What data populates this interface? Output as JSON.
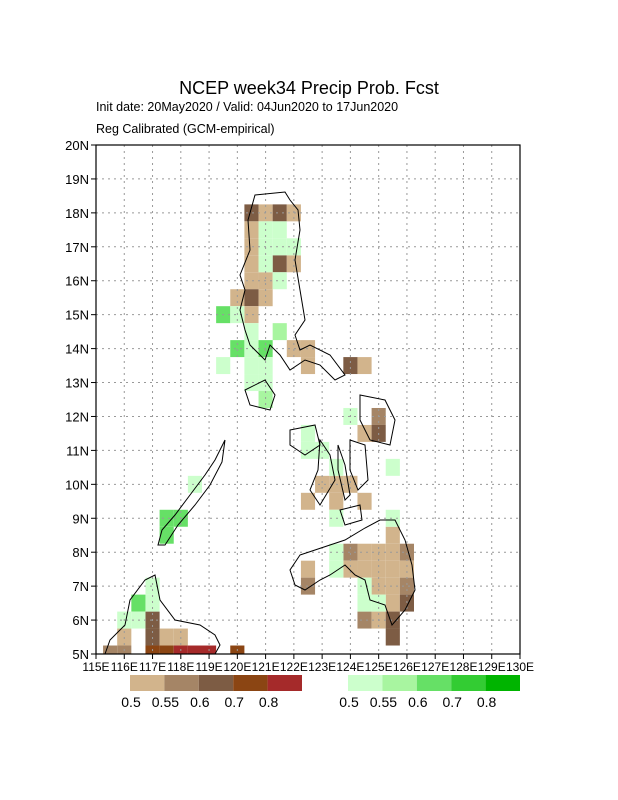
{
  "chart_data": {
    "type": "gridmap",
    "title": "NCEP week34 Precip Prob. Fcst",
    "subtitle_lines": [
      "Init date: 20May2020 / Valid: 04Jun2020 to 17Jun2020",
      "Reg Calibrated (GCM-empirical)"
    ],
    "xlim": [
      115,
      130
    ],
    "ylim": [
      5,
      20
    ],
    "xticks": [
      {
        "value": 115,
        "label": "115E"
      },
      {
        "value": 116,
        "label": "116E"
      },
      {
        "value": 117,
        "label": "117E"
      },
      {
        "value": 118,
        "label": "118E"
      },
      {
        "value": 119,
        "label": "119E"
      },
      {
        "value": 120,
        "label": "120E"
      },
      {
        "value": 121,
        "label": "121E"
      },
      {
        "value": 122,
        "label": "122E"
      },
      {
        "value": 123,
        "label": "123E"
      },
      {
        "value": 124,
        "label": "124E"
      },
      {
        "value": 125,
        "label": "125E"
      },
      {
        "value": 126,
        "label": "126E"
      },
      {
        "value": 127,
        "label": "127E"
      },
      {
        "value": 128,
        "label": "128E"
      },
      {
        "value": 129,
        "label": "129E"
      },
      {
        "value": 130,
        "label": "130E"
      }
    ],
    "yticks": [
      {
        "value": 5,
        "label": "5N"
      },
      {
        "value": 6,
        "label": "6N"
      },
      {
        "value": 7,
        "label": "7N"
      },
      {
        "value": 8,
        "label": "8N"
      },
      {
        "value": 9,
        "label": "9N"
      },
      {
        "value": 10,
        "label": "10N"
      },
      {
        "value": 11,
        "label": "11N"
      },
      {
        "value": 12,
        "label": "12N"
      },
      {
        "value": 13,
        "label": "13N"
      },
      {
        "value": 14,
        "label": "14N"
      },
      {
        "value": 15,
        "label": "15N"
      },
      {
        "value": 16,
        "label": "16N"
      },
      {
        "value": 17,
        "label": "17N"
      },
      {
        "value": 18,
        "label": "18N"
      },
      {
        "value": 19,
        "label": "19N"
      },
      {
        "value": 20,
        "label": "20N"
      }
    ],
    "grid": true,
    "cell_size": 0.5,
    "legends": [
      {
        "levels": [
          0.5,
          0.55,
          0.6,
          0.7,
          0.8
        ],
        "colors": [
          "#d2b48c",
          "#a58566",
          "#7d5c44",
          "#8b4513",
          "#a52a2a"
        ],
        "cells": [
          [
            120.5,
            18,
            0.6
          ],
          [
            121,
            18,
            0.5
          ],
          [
            121.5,
            18,
            0.6
          ],
          [
            122,
            18,
            0.5
          ],
          [
            120.5,
            17.5,
            0.5
          ],
          [
            120.5,
            17,
            0.5
          ],
          [
            120.5,
            16.5,
            0.5
          ],
          [
            121.5,
            16.5,
            0.6
          ],
          [
            122,
            16.5,
            0.5
          ],
          [
            120.5,
            16,
            0.5
          ],
          [
            121,
            16,
            0.5
          ],
          [
            120,
            15.5,
            0.5
          ],
          [
            120.5,
            15.5,
            0.6
          ],
          [
            121,
            15.5,
            0.5
          ],
          [
            120.5,
            15,
            0.5
          ],
          [
            122,
            14,
            0.5
          ],
          [
            122.5,
            14,
            0.5
          ],
          [
            122.5,
            13.5,
            0.5
          ],
          [
            124,
            13.5,
            0.6
          ],
          [
            124.5,
            13.5,
            0.5
          ],
          [
            125,
            12,
            0.55
          ],
          [
            124.5,
            11.5,
            0.5
          ],
          [
            125,
            11.5,
            0.6
          ],
          [
            123,
            10,
            0.5
          ],
          [
            123.5,
            10,
            0.5
          ],
          [
            124,
            10,
            0.5
          ],
          [
            122.5,
            9.5,
            0.5
          ],
          [
            123.5,
            9.5,
            0.5
          ],
          [
            124.5,
            9.5,
            0.5
          ],
          [
            125.5,
            8.5,
            0.5
          ],
          [
            124,
            8,
            0.55
          ],
          [
            124.5,
            8,
            0.5
          ],
          [
            125,
            8,
            0.5
          ],
          [
            125.5,
            8,
            0.5
          ],
          [
            126,
            8,
            0.55
          ],
          [
            122.5,
            7.5,
            0.5
          ],
          [
            124,
            7.5,
            0.5
          ],
          [
            124.5,
            7.5,
            0.5
          ],
          [
            125,
            7.5,
            0.5
          ],
          [
            125.5,
            7.5,
            0.5
          ],
          [
            126,
            7.5,
            0.5
          ],
          [
            122.5,
            7,
            0.55
          ],
          [
            125,
            7,
            0.5
          ],
          [
            125.5,
            7,
            0.5
          ],
          [
            126,
            7,
            0.55
          ],
          [
            125.5,
            6.5,
            0.5
          ],
          [
            126,
            6.5,
            0.6
          ],
          [
            124.5,
            6,
            0.55
          ],
          [
            125,
            6,
            0.5
          ],
          [
            125.5,
            6,
            0.6
          ],
          [
            125.5,
            5.5,
            0.6
          ],
          [
            117,
            6,
            0.6
          ],
          [
            116,
            5.5,
            0.5
          ],
          [
            117,
            5.5,
            0.6
          ],
          [
            117.5,
            5.5,
            0.5
          ],
          [
            118,
            5.5,
            0.5
          ],
          [
            115.5,
            5,
            0.55
          ],
          [
            116,
            5,
            0.55
          ],
          [
            117,
            5,
            0.7
          ],
          [
            117.5,
            5,
            0.7
          ],
          [
            118,
            5,
            0.8
          ],
          [
            118.5,
            5,
            0.8
          ],
          [
            119,
            5,
            0.8
          ],
          [
            120,
            5,
            0.7
          ]
        ]
      },
      {
        "levels": [
          0.5,
          0.55,
          0.6,
          0.7,
          0.8
        ],
        "colors": [
          "#ccffcc",
          "#a8f5a0",
          "#66e066",
          "#33cc33",
          "#00b400"
        ],
        "cells": [
          [
            121,
            17.5,
            0.5
          ],
          [
            121.5,
            17.5,
            0.5
          ],
          [
            121,
            17,
            0.5
          ],
          [
            121.5,
            17,
            0.5
          ],
          [
            122,
            17,
            0.5
          ],
          [
            121,
            16.5,
            0.5
          ],
          [
            121.5,
            16,
            0.5
          ],
          [
            119.5,
            15,
            0.6
          ],
          [
            120,
            15,
            0.5
          ],
          [
            120.5,
            14.5,
            0.5
          ],
          [
            121.5,
            14.5,
            0.55
          ],
          [
            120,
            14,
            0.6
          ],
          [
            120.5,
            14,
            0.5
          ],
          [
            121,
            14,
            0.6
          ],
          [
            119.5,
            13.5,
            0.5
          ],
          [
            120.5,
            13.5,
            0.5
          ],
          [
            121,
            13.5,
            0.5
          ],
          [
            120.5,
            13,
            0.5
          ],
          [
            121,
            13,
            0.5
          ],
          [
            121,
            12.5,
            0.55
          ],
          [
            124,
            12,
            0.5
          ],
          [
            122.5,
            11.5,
            0.5
          ],
          [
            122.5,
            11,
            0.5
          ],
          [
            123,
            11,
            0.5
          ],
          [
            123.5,
            10.5,
            0.5
          ],
          [
            125.5,
            10.5,
            0.5
          ],
          [
            118.5,
            10,
            0.5
          ],
          [
            123.5,
            9,
            0.5
          ],
          [
            125.5,
            9,
            0.5
          ],
          [
            117.5,
            9,
            0.6
          ],
          [
            118,
            9,
            0.6
          ],
          [
            117.5,
            8.5,
            0.6
          ],
          [
            123.5,
            8,
            0.5
          ],
          [
            123.5,
            7.5,
            0.5
          ],
          [
            124.5,
            7,
            0.5
          ],
          [
            124.5,
            6.5,
            0.5
          ],
          [
            125,
            6.5,
            0.5
          ],
          [
            117,
            7,
            0.5
          ],
          [
            116.5,
            6.5,
            0.6
          ],
          [
            117,
            6.5,
            0.5
          ],
          [
            116,
            6,
            0.5
          ],
          [
            116.5,
            6,
            0.5
          ]
        ]
      }
    ]
  }
}
